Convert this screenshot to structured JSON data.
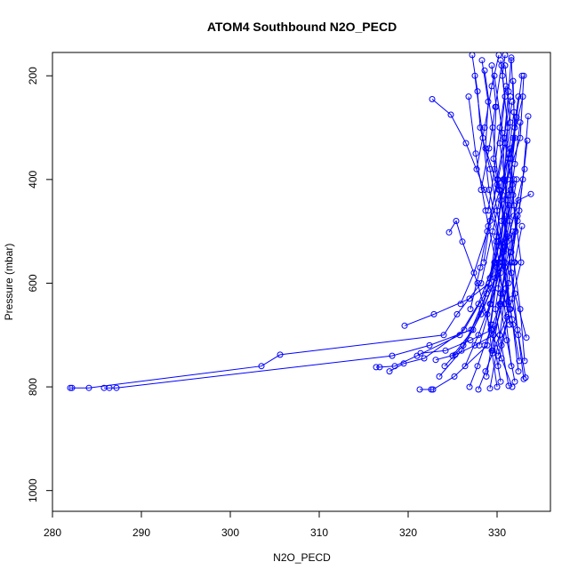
{
  "chart_data": {
    "type": "line",
    "title": "ATOM4 Southbound N2O_PECD",
    "xlabel": "N2O_PECD",
    "ylabel": "Pressure (mbar)",
    "xlim": [
      280,
      336
    ],
    "ylim": [
      1040,
      155
    ],
    "y_reversed": true,
    "x_ticks": [
      280,
      290,
      300,
      310,
      320,
      330
    ],
    "y_ticks": [
      200,
      400,
      600,
      800,
      1000
    ],
    "grid": false,
    "legend": "none",
    "series_color": "#0000ff",
    "marker": "open-circle",
    "series": [
      {
        "x": [
          282.0,
          282.2,
          284.1,
          303.5,
          305.6,
          324.0,
          325.5,
          328.2,
          329.5,
          330.8,
          331.2,
          330.6,
          330.9
        ],
        "y": [
          802,
          802,
          802,
          760,
          738,
          700,
          660,
          600,
          500,
          400,
          300,
          200,
          160
        ]
      },
      {
        "x": [
          285.8,
          286.4,
          287.2,
          318.2,
          322.4,
          327.1,
          328.8,
          330.1,
          331.5,
          332.0,
          331.6
        ],
        "y": [
          802,
          802,
          802,
          740,
          720,
          690,
          620,
          520,
          420,
          300,
          170
        ]
      },
      {
        "x": [
          316.4,
          316.8,
          318.5,
          321.0,
          325.8,
          327.9,
          329.7,
          330.4,
          332.6,
          333.0
        ],
        "y": [
          762,
          762,
          760,
          740,
          700,
          640,
          560,
          440,
          320,
          200
        ]
      },
      {
        "x": [
          317.9,
          319.5,
          321.8,
          326.3,
          329.0,
          330.8,
          331.3,
          332.9
        ],
        "y": [
          770,
          755,
          745,
          690,
          610,
          480,
          360,
          240
        ]
      },
      {
        "x": [
          321.3,
          322.6,
          322.8,
          325.2,
          328.9,
          330.2,
          331.9
        ],
        "y": [
          805,
          805,
          805,
          780,
          720,
          560,
          400
        ]
      },
      {
        "x": [
          319.6,
          322.9,
          326.9,
          329.1,
          331.1,
          332.4,
          333.8
        ],
        "y": [
          682,
          660,
          630,
          600,
          520,
          440,
          428
        ]
      },
      {
        "x": [
          322.7,
          324.8,
          326.5,
          328.6,
          330.7,
          331.4
        ],
        "y": [
          245,
          275,
          330,
          420,
          540,
          680
        ]
      },
      {
        "x": [
          324.6,
          325.4,
          326.1,
          327.8,
          329.3,
          330.5,
          331.7
        ],
        "y": [
          502,
          480,
          520,
          600,
          690,
          745,
          800
        ]
      },
      {
        "x": [
          327.2,
          327.8,
          328.1,
          329.2,
          330.0,
          330.9,
          331.5
        ],
        "y": [
          160,
          230,
          300,
          380,
          460,
          560,
          650
        ]
      },
      {
        "x": [
          328.3,
          329.0,
          328.7,
          330.2,
          331.1,
          332.0,
          333.3
        ],
        "y": [
          170,
          250,
          340,
          420,
          520,
          620,
          705
        ]
      },
      {
        "x": [
          329.4,
          329.9,
          329.6,
          330.8,
          331.6,
          332.3,
          333.0
        ],
        "y": [
          180,
          260,
          360,
          480,
          580,
          690,
          785
        ]
      },
      {
        "x": [
          330.4,
          330.9,
          330.3,
          331.2,
          331.9,
          332.6,
          333.1
        ],
        "y": [
          170,
          240,
          330,
          440,
          560,
          650,
          750
        ]
      },
      {
        "x": [
          331.6,
          331.3,
          330.8,
          331.7,
          332.1,
          331.3,
          329.6
        ],
        "y": [
          165,
          230,
          320,
          410,
          500,
          600,
          700
        ]
      },
      {
        "x": [
          332.8,
          332.2,
          331.6,
          331.9,
          332.7,
          331.4,
          330.1
        ],
        "y": [
          200,
          280,
          360,
          450,
          560,
          650,
          760
        ]
      },
      {
        "x": [
          327.5,
          328.4,
          329.1,
          330.5,
          331.0,
          330.3,
          329.2
        ],
        "y": [
          200,
          320,
          420,
          530,
          610,
          700,
          803
        ]
      },
      {
        "x": [
          326.8,
          327.6,
          328.7,
          330.0,
          331.3,
          330.1
        ],
        "y": [
          240,
          350,
          460,
          570,
          660,
          740
        ]
      },
      {
        "x": [
          328.6,
          329.5,
          330.1,
          331.2,
          330.6,
          329.5
        ],
        "y": [
          190,
          300,
          400,
          510,
          620,
          730
        ]
      },
      {
        "x": [
          329.7,
          330.6,
          331.0,
          330.2,
          329.3,
          330.4
        ],
        "y": [
          200,
          310,
          440,
          560,
          680,
          790
        ]
      },
      {
        "x": [
          330.9,
          331.5,
          330.7,
          329.9,
          330.8,
          331.6
        ],
        "y": [
          180,
          290,
          400,
          520,
          640,
          760
        ]
      },
      {
        "x": [
          331.8,
          332.0,
          331.3,
          330.5,
          331.7,
          332.4
        ],
        "y": [
          210,
          320,
          430,
          550,
          670,
          770
        ]
      },
      {
        "x": [
          324.1,
          326.2,
          328.3,
          329.8,
          330.9
        ],
        "y": [
          760,
          720,
          650,
          560,
          470
        ]
      },
      {
        "x": [
          325.0,
          327.3,
          329.4,
          330.7,
          331.8
        ],
        "y": [
          740,
          690,
          610,
          520,
          430
        ]
      },
      {
        "x": [
          323.5,
          326.0,
          328.2,
          330.1
        ],
        "y": [
          780,
          730,
          660,
          580
        ]
      },
      {
        "x": [
          328.0,
          329.3,
          330.6,
          331.4,
          332.2
        ],
        "y": [
          720,
          640,
          560,
          480,
          400
        ]
      },
      {
        "x": [
          327.0,
          328.1,
          329.0,
          330.0,
          330.9,
          331.7
        ],
        "y": [
          650,
          570,
          490,
          410,
          330,
          250
        ]
      },
      {
        "x": [
          325.9,
          327.4,
          328.9,
          330.3,
          331.5
        ],
        "y": [
          640,
          580,
          500,
          420,
          340
        ]
      },
      {
        "x": [
          328.8,
          329.6,
          330.4,
          331.6,
          332.5,
          333.4
        ],
        "y": [
          780,
          700,
          620,
          540,
          460,
          325
        ]
      },
      {
        "x": [
          326.4,
          327.9,
          329.2,
          330.6,
          331.9,
          333.1
        ],
        "y": [
          760,
          700,
          640,
          560,
          470,
          380
        ]
      },
      {
        "x": [
          330.0,
          329.4,
          328.9,
          329.8,
          330.7
        ],
        "y": [
          800,
          730,
          660,
          590,
          520
        ]
      },
      {
        "x": [
          331.3,
          330.5,
          329.8,
          330.4,
          331.2
        ],
        "y": [
          798,
          720,
          650,
          580,
          510
        ]
      },
      {
        "x": [
          332.0,
          331.1,
          330.3,
          330.9,
          331.8
        ],
        "y": [
          790,
          710,
          640,
          570,
          500
        ]
      },
      {
        "x": [
          332.5,
          331.8,
          331.0,
          331.5,
          332.3
        ],
        "y": [
          750,
          680,
          610,
          540,
          470
        ]
      },
      {
        "x": [
          333.2,
          332.4,
          331.7,
          332.0,
          332.8
        ],
        "y": [
          782,
          700,
          630,
          560,
          490
        ]
      },
      {
        "x": [
          328.5,
          329.2,
          330.0,
          330.8,
          331.5
        ],
        "y": [
          560,
          480,
          400,
          320,
          240
        ]
      },
      {
        "x": [
          329.2,
          329.9,
          330.6,
          331.3,
          331.9
        ],
        "y": [
          590,
          510,
          430,
          350,
          270
        ]
      },
      {
        "x": [
          330.1,
          330.8,
          331.4,
          332.0,
          332.6
        ],
        "y": [
          610,
          530,
          450,
          370,
          290
        ]
      },
      {
        "x": [
          331.0,
          331.6,
          332.3,
          332.9,
          333.5
        ],
        "y": [
          640,
          560,
          480,
          400,
          278
        ]
      },
      {
        "x": [
          327.7,
          328.6,
          329.4,
          330.2
        ],
        "y": [
          380,
          300,
          220,
          160
        ]
      },
      {
        "x": [
          328.2,
          329.1,
          329.8,
          330.5
        ],
        "y": [
          420,
          340,
          260,
          180
        ]
      },
      {
        "x": [
          329.0,
          329.7,
          330.3,
          331.0
        ],
        "y": [
          460,
          380,
          300,
          220
        ]
      },
      {
        "x": [
          330.5,
          331.2,
          331.8,
          332.4
        ],
        "y": [
          480,
          400,
          320,
          240
        ]
      },
      {
        "x": [
          326.9,
          327.8,
          328.6,
          329.5,
          330.4
        ],
        "y": [
          800,
          760,
          720,
          680,
          640
        ]
      },
      {
        "x": [
          327.9,
          328.7,
          329.5,
          330.3,
          331.1
        ],
        "y": [
          805,
          770,
          735,
          700,
          665
        ]
      },
      {
        "x": [
          321.4,
          324.2,
          327.0,
          329.4
        ],
        "y": [
          735,
          730,
          710,
          690
        ]
      },
      {
        "x": [
          323.1,
          325.3,
          327.5,
          329.6
        ],
        "y": [
          748,
          738,
          720,
          700
        ]
      }
    ]
  }
}
